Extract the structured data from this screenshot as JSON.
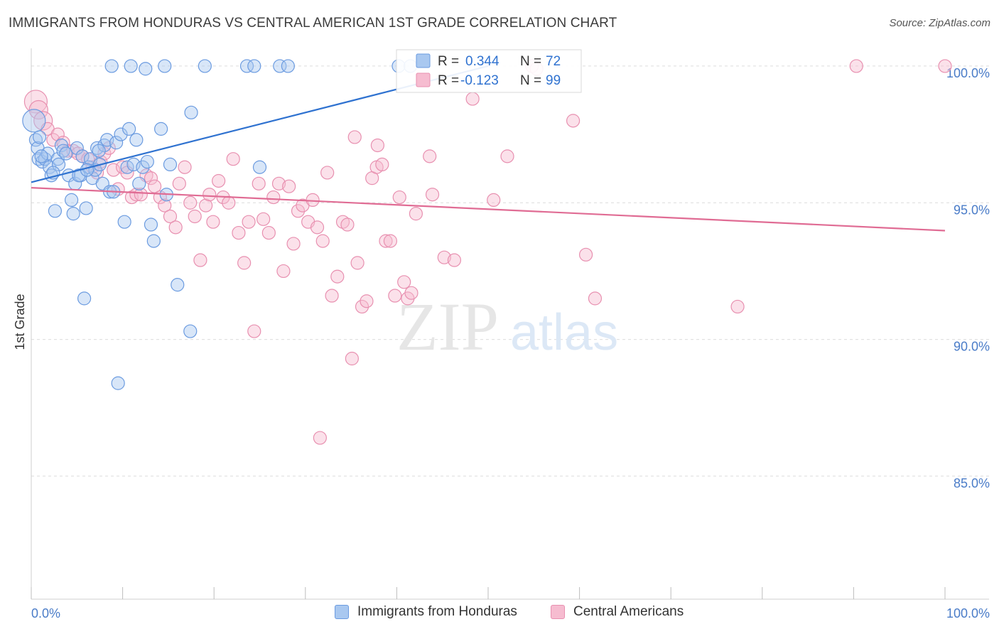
{
  "header": {
    "title": "IMMIGRANTS FROM HONDURAS VS CENTRAL AMERICAN 1ST GRADE CORRELATION CHART",
    "source": "Source: ZipAtlas.com"
  },
  "watermark": {
    "zip": "ZIP",
    "atlas": "atlas"
  },
  "colors": {
    "blue_fill": "#a9c8f0",
    "blue_stroke": "#6b9be0",
    "blue_line": "#2f72d0",
    "pink_fill": "#f6bcd0",
    "pink_stroke": "#e890b0",
    "pink_line": "#e06c94",
    "axis_label": "#4a7cc8",
    "grid": "#dcdcdc"
  },
  "legend_box": {
    "rows": [
      {
        "r_label": "R =",
        "r_value": "0.344",
        "n_label": "N =",
        "n_value": "72",
        "series": "blue"
      },
      {
        "r_label": "R =",
        "r_value": "-0.123",
        "n_label": "N =",
        "n_value": "99",
        "series": "pink"
      }
    ]
  },
  "chart_data": {
    "type": "scatter",
    "title": "IMMIGRANTS FROM HONDURAS VS CENTRAL AMERICAN 1ST GRADE CORRELATION CHART",
    "xlabel": "",
    "ylabel": "1st Grade",
    "xlim": [
      0,
      100
    ],
    "ylim": [
      80.5,
      100.7
    ],
    "x_tick_labels": [
      "0.0%",
      "100.0%"
    ],
    "y_ticks": [
      85,
      90,
      95,
      100
    ],
    "y_tick_labels": [
      "85.0%",
      "90.0%",
      "95.0%",
      "100.0%"
    ],
    "grid": true,
    "legend_position": "top-center",
    "series": [
      {
        "name": "Immigrants from Honduras",
        "color": "#a9c8f0",
        "trend": {
          "x0": 0,
          "y0": 95.75,
          "x1": 50,
          "y1": 100.0
        },
        "points": [
          [
            0.3,
            98.0
          ],
          [
            0.5,
            97.3
          ],
          [
            0.7,
            97.0
          ],
          [
            0.8,
            96.6
          ],
          [
            0.9,
            97.4
          ],
          [
            1.2,
            96.5
          ],
          [
            1.5,
            96.6
          ],
          [
            1.8,
            96.8
          ],
          [
            2.0,
            96.3
          ],
          [
            2.2,
            96.0
          ],
          [
            2.6,
            94.7
          ],
          [
            2.9,
            96.6
          ],
          [
            3.3,
            97.1
          ],
          [
            3.5,
            96.9
          ],
          [
            3.8,
            96.8
          ],
          [
            4.1,
            96.0
          ],
          [
            4.4,
            95.1
          ],
          [
            4.6,
            94.6
          ],
          [
            4.8,
            95.7
          ],
          [
            5.0,
            97.0
          ],
          [
            5.4,
            96.0
          ],
          [
            5.6,
            96.7
          ],
          [
            5.8,
            91.5
          ],
          [
            6.0,
            94.8
          ],
          [
            6.3,
            96.3
          ],
          [
            6.5,
            96.6
          ],
          [
            6.7,
            95.9
          ],
          [
            7.0,
            96.2
          ],
          [
            7.2,
            97.0
          ],
          [
            7.5,
            96.4
          ],
          [
            7.8,
            95.7
          ],
          [
            8.0,
            97.1
          ],
          [
            8.3,
            97.3
          ],
          [
            8.6,
            95.4
          ],
          [
            8.8,
            100.0
          ],
          [
            9.0,
            95.4
          ],
          [
            9.3,
            97.2
          ],
          [
            9.5,
            88.4
          ],
          [
            9.8,
            97.5
          ],
          [
            10.2,
            94.3
          ],
          [
            10.5,
            96.3
          ],
          [
            10.7,
            97.7
          ],
          [
            10.9,
            100.0
          ],
          [
            11.2,
            96.4
          ],
          [
            11.5,
            97.3
          ],
          [
            11.8,
            95.7
          ],
          [
            12.2,
            96.3
          ],
          [
            12.5,
            99.9
          ],
          [
            12.7,
            96.5
          ],
          [
            13.1,
            94.2
          ],
          [
            13.4,
            93.6
          ],
          [
            14.2,
            97.7
          ],
          [
            14.6,
            100.0
          ],
          [
            14.8,
            95.3
          ],
          [
            15.2,
            96.4
          ],
          [
            16.0,
            92.0
          ],
          [
            17.5,
            98.3
          ],
          [
            17.4,
            90.3
          ],
          [
            19.0,
            100.0
          ],
          [
            23.6,
            100.0
          ],
          [
            24.4,
            100.0
          ],
          [
            25.0,
            96.3
          ],
          [
            27.2,
            100.0
          ],
          [
            28.1,
            100.0
          ],
          [
            40.2,
            100.0
          ],
          [
            41.5,
            100.0
          ],
          [
            1.1,
            96.7
          ],
          [
            3.0,
            96.4
          ],
          [
            5.2,
            96.0
          ],
          [
            2.4,
            96.1
          ],
          [
            7.4,
            96.9
          ],
          [
            6.1,
            96.2
          ]
        ]
      },
      {
        "name": "Central Americans",
        "color": "#f6bcd0",
        "trend": {
          "x0": 0,
          "y0": 95.55,
          "x1": 100,
          "y1": 93.98
        },
        "points": [
          [
            0.5,
            98.7
          ],
          [
            0.8,
            98.4
          ],
          [
            1.3,
            98.0
          ],
          [
            1.8,
            97.7
          ],
          [
            2.4,
            97.3
          ],
          [
            2.9,
            97.5
          ],
          [
            3.5,
            97.2
          ],
          [
            4.0,
            96.9
          ],
          [
            4.6,
            96.9
          ],
          [
            5.1,
            96.8
          ],
          [
            5.6,
            96.7
          ],
          [
            6.2,
            96.6
          ],
          [
            6.7,
            96.3
          ],
          [
            7.2,
            96.1
          ],
          [
            7.6,
            96.5
          ],
          [
            8.0,
            96.8
          ],
          [
            8.5,
            97.0
          ],
          [
            9.0,
            96.2
          ],
          [
            9.5,
            95.5
          ],
          [
            10.0,
            96.3
          ],
          [
            10.5,
            96.1
          ],
          [
            11.0,
            95.2
          ],
          [
            11.5,
            95.3
          ],
          [
            12.0,
            95.3
          ],
          [
            12.6,
            96.0
          ],
          [
            13.1,
            95.9
          ],
          [
            13.5,
            95.6
          ],
          [
            14.1,
            95.2
          ],
          [
            14.6,
            94.9
          ],
          [
            15.2,
            94.5
          ],
          [
            15.8,
            94.1
          ],
          [
            16.2,
            95.7
          ],
          [
            16.8,
            96.3
          ],
          [
            17.4,
            95.0
          ],
          [
            17.9,
            94.5
          ],
          [
            18.5,
            92.9
          ],
          [
            19.1,
            94.9
          ],
          [
            19.5,
            95.3
          ],
          [
            19.9,
            94.3
          ],
          [
            20.5,
            95.8
          ],
          [
            21.0,
            95.2
          ],
          [
            21.6,
            95.0
          ],
          [
            22.1,
            96.6
          ],
          [
            22.7,
            93.9
          ],
          [
            23.3,
            92.8
          ],
          [
            23.8,
            94.3
          ],
          [
            24.4,
            90.3
          ],
          [
            24.9,
            95.7
          ],
          [
            25.4,
            94.4
          ],
          [
            26.0,
            93.9
          ],
          [
            26.5,
            95.2
          ],
          [
            27.1,
            95.7
          ],
          [
            27.6,
            92.5
          ],
          [
            28.2,
            95.6
          ],
          [
            28.7,
            93.5
          ],
          [
            29.2,
            94.7
          ],
          [
            29.7,
            94.9
          ],
          [
            30.3,
            94.3
          ],
          [
            30.8,
            95.1
          ],
          [
            31.3,
            94.1
          ],
          [
            31.9,
            93.6
          ],
          [
            32.4,
            96.1
          ],
          [
            32.9,
            91.6
          ],
          [
            33.5,
            92.3
          ],
          [
            34.1,
            94.3
          ],
          [
            34.6,
            94.2
          ],
          [
            35.1,
            89.3
          ],
          [
            35.7,
            92.8
          ],
          [
            36.2,
            91.2
          ],
          [
            36.7,
            91.4
          ],
          [
            37.3,
            95.9
          ],
          [
            37.8,
            96.3
          ],
          [
            38.4,
            96.4
          ],
          [
            38.8,
            93.6
          ],
          [
            39.3,
            93.6
          ],
          [
            39.8,
            91.6
          ],
          [
            40.3,
            95.2
          ],
          [
            40.8,
            92.1
          ],
          [
            41.2,
            91.5
          ],
          [
            41.6,
            91.7
          ],
          [
            42.1,
            94.6
          ],
          [
            43.6,
            96.7
          ],
          [
            43.9,
            95.3
          ],
          [
            45.2,
            93.0
          ],
          [
            46.3,
            92.9
          ],
          [
            31.6,
            86.4
          ],
          [
            35.4,
            97.4
          ],
          [
            37.9,
            97.1
          ],
          [
            48.3,
            98.8
          ],
          [
            50.6,
            95.1
          ],
          [
            52.1,
            96.7
          ],
          [
            54.8,
            100.0
          ],
          [
            59.3,
            98.0
          ],
          [
            60.7,
            93.1
          ],
          [
            61.7,
            91.5
          ],
          [
            77.3,
            91.2
          ],
          [
            90.3,
            100.0
          ],
          [
            100.0,
            100.0
          ],
          [
            55.3,
            99.9
          ]
        ]
      }
    ]
  },
  "legend_bottom": {
    "items": [
      {
        "label": "Immigrants from Honduras",
        "series": "blue"
      },
      {
        "label": "Central Americans",
        "series": "pink"
      }
    ]
  }
}
